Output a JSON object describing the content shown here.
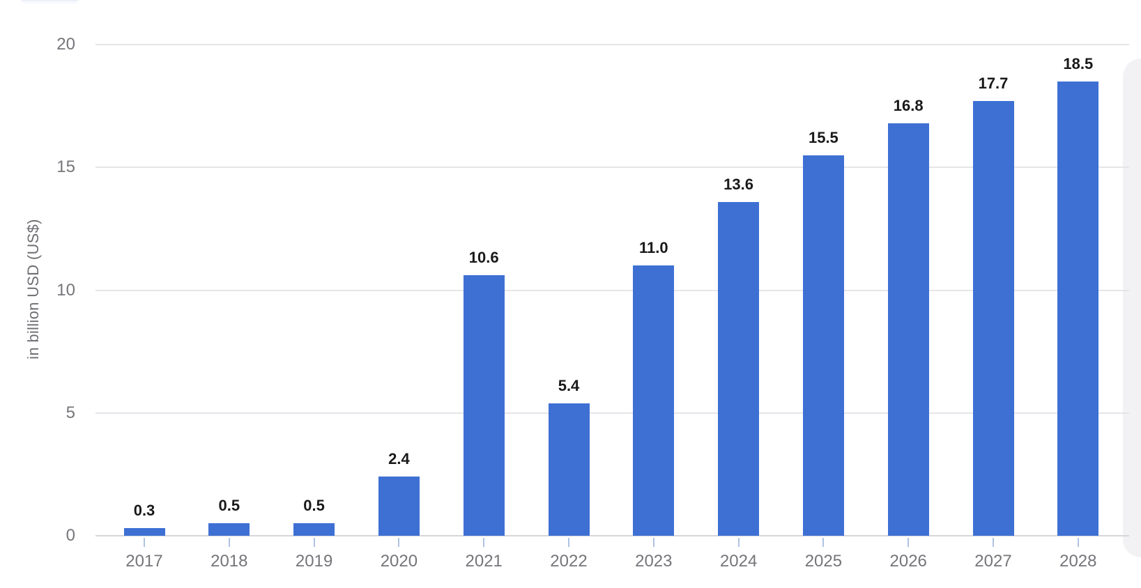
{
  "chart_data": {
    "type": "bar",
    "categories": [
      "2017",
      "2018",
      "2019",
      "2020",
      "2021",
      "2022",
      "2023",
      "2024",
      "2025",
      "2026",
      "2027",
      "2028"
    ],
    "values": [
      0.3,
      0.5,
      0.5,
      2.4,
      10.6,
      5.4,
      11.0,
      13.6,
      15.5,
      16.8,
      17.7,
      18.5
    ],
    "value_labels": [
      "0.3",
      "0.5",
      "0.5",
      "2.4",
      "10.6",
      "5.4",
      "11.0",
      "13.6",
      "15.5",
      "16.8",
      "17.7",
      "18.5"
    ],
    "title": "",
    "xlabel": "",
    "ylabel": "in billion USD (US$)",
    "ylim": [
      0,
      20
    ],
    "yticks": [
      0,
      5,
      10,
      15,
      20
    ],
    "grid": true,
    "legend": false,
    "bar_color": "#3E70D4"
  },
  "colors": {
    "bar": "#3E70D4",
    "gridline": "#e5e5e9",
    "baseline": "#d6d6db",
    "axis_text": "#75757a",
    "value_text": "#191919",
    "tick_mark": "#aec3e2"
  }
}
